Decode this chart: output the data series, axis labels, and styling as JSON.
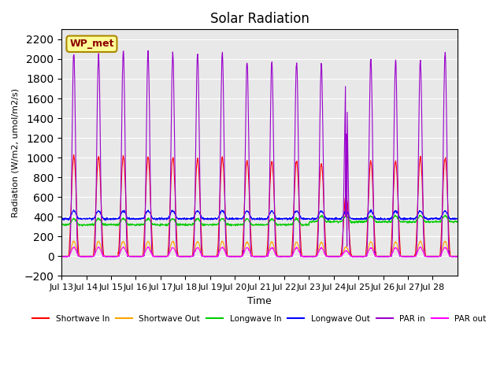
{
  "title": "Solar Radiation",
  "ylabel": "Radiation (W/m2, umol/m2/s)",
  "xlabel": "Time",
  "xlabels": [
    "Jul 13",
    "Jul 14",
    "Jul 15",
    "Jul 16",
    "Jul 17",
    "Jul 18",
    "Jul 19",
    "Jul 20",
    "Jul 21",
    "Jul 22",
    "Jul 23",
    "Jul 24",
    "Jul 25",
    "Jul 26",
    "Jul 27",
    "Jul 28"
  ],
  "ylim": [
    -200,
    2300
  ],
  "yticks": [
    -200,
    0,
    200,
    400,
    600,
    800,
    1000,
    1200,
    1400,
    1600,
    1800,
    2000,
    2200
  ],
  "legend_entries": [
    "Shortwave In",
    "Shortwave Out",
    "Longwave In",
    "Longwave Out",
    "PAR in",
    "PAR out"
  ],
  "legend_colors": [
    "#ff0000",
    "#ffa500",
    "#00cc00",
    "#0000ff",
    "#9900cc",
    "#ff00ff"
  ],
  "annotation_text": "WP_met",
  "annotation_bg": "#ffff99",
  "annotation_border": "#aa8800",
  "background_color": "#e8e8e8",
  "n_days": 16,
  "pts_per_day": 96
}
